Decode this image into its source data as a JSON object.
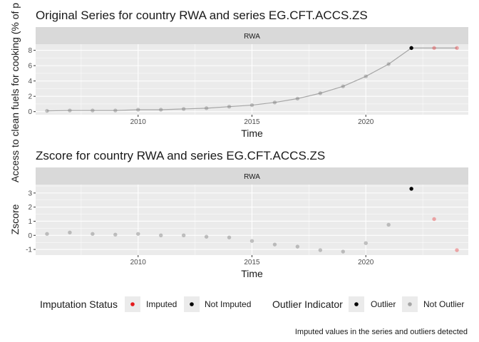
{
  "chart_data": [
    {
      "type": "line",
      "title": "Original Series for country RWA  and series EG.CFT.ACCS.ZS",
      "facet": "RWA",
      "xlabel": "Time",
      "ylabel": "Access to clean fuels for cooking (% of p",
      "xlim": [
        2005.5,
        2024.5
      ],
      "ylim": [
        -0.4,
        8.8
      ],
      "x_ticks": [
        2010,
        2015,
        2020
      ],
      "y_ticks": [
        0,
        2,
        4,
        6,
        8
      ],
      "x": [
        2006,
        2007,
        2008,
        2009,
        2010,
        2011,
        2012,
        2013,
        2014,
        2015,
        2016,
        2017,
        2018,
        2019,
        2020,
        2021,
        2022,
        2023,
        2024
      ],
      "values": [
        0.1,
        0.15,
        0.15,
        0.15,
        0.25,
        0.25,
        0.35,
        0.45,
        0.65,
        0.85,
        1.2,
        1.7,
        2.4,
        3.3,
        4.6,
        6.2,
        8.3,
        8.3,
        8.3
      ],
      "imputation": [
        "Not Imputed",
        "Not Imputed",
        "Not Imputed",
        "Not Imputed",
        "Not Imputed",
        "Not Imputed",
        "Not Imputed",
        "Not Imputed",
        "Not Imputed",
        "Not Imputed",
        "Not Imputed",
        "Not Imputed",
        "Not Imputed",
        "Not Imputed",
        "Not Imputed",
        "Not Imputed",
        "Not Imputed",
        "Imputed",
        "Imputed"
      ],
      "outlier": [
        "Not Outlier",
        "Not Outlier",
        "Not Outlier",
        "Not Outlier",
        "Not Outlier",
        "Not Outlier",
        "Not Outlier",
        "Not Outlier",
        "Not Outlier",
        "Not Outlier",
        "Not Outlier",
        "Not Outlier",
        "Not Outlier",
        "Not Outlier",
        "Not Outlier",
        "Not Outlier",
        "Outlier",
        "Not Outlier",
        "Not Outlier"
      ],
      "grid": true
    },
    {
      "type": "scatter",
      "title": "Zscore for country RWA  and series EG.CFT.ACCS.ZS",
      "facet": "RWA",
      "xlabel": "Time",
      "ylabel": "Zscore",
      "xlim": [
        2005.5,
        2024.5
      ],
      "ylim": [
        -1.4,
        3.6
      ],
      "x_ticks": [
        2010,
        2015,
        2020
      ],
      "y_ticks": [
        -1,
        0,
        1,
        2,
        3
      ],
      "x": [
        2006,
        2007,
        2008,
        2009,
        2010,
        2011,
        2012,
        2013,
        2014,
        2015,
        2016,
        2017,
        2018,
        2019,
        2020,
        2021,
        2022,
        2023,
        2024
      ],
      "values": [
        0.1,
        0.2,
        0.1,
        0.05,
        0.1,
        0.0,
        0.0,
        -0.1,
        -0.15,
        -0.4,
        -0.65,
        -0.8,
        -1.05,
        -1.15,
        -0.55,
        0.75,
        3.3,
        1.15,
        -1.05
      ],
      "imputation": [
        "Not Imputed",
        "Not Imputed",
        "Not Imputed",
        "Not Imputed",
        "Not Imputed",
        "Not Imputed",
        "Not Imputed",
        "Not Imputed",
        "Not Imputed",
        "Not Imputed",
        "Not Imputed",
        "Not Imputed",
        "Not Imputed",
        "Not Imputed",
        "Not Imputed",
        "Not Imputed",
        "Not Imputed",
        "Imputed",
        "Imputed"
      ],
      "outlier": [
        "Not Outlier",
        "Not Outlier",
        "Not Outlier",
        "Not Outlier",
        "Not Outlier",
        "Not Outlier",
        "Not Outlier",
        "Not Outlier",
        "Not Outlier",
        "Not Outlier",
        "Not Outlier",
        "Not Outlier",
        "Not Outlier",
        "Not Outlier",
        "Not Outlier",
        "Not Outlier",
        "Outlier",
        "Not Outlier",
        "Not Outlier"
      ],
      "grid": true
    }
  ],
  "legend": {
    "imputation_title": "Imputation Status",
    "imputation_items": [
      "Imputed",
      "Not Imputed"
    ],
    "outlier_title": "Outlier Indicator",
    "outlier_items": [
      "Outlier",
      "Not Outlier"
    ],
    "placement": "bottom"
  },
  "caption": "Imputed values in the series and outliers detected",
  "colors": {
    "panel_bg": "#ebebeb",
    "strip_bg": "#d9d9d9",
    "grid": "#ffffff",
    "line": "#a6a6a6",
    "imputed": "#e41a1c",
    "not_imputed": "#000000",
    "outlier": "#000000",
    "not_outlier": "#a6a6a6"
  }
}
